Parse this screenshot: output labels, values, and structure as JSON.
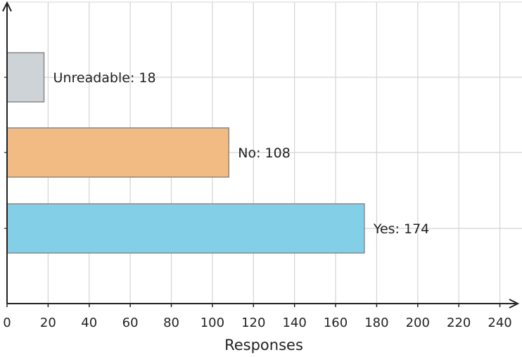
{
  "chart_data": {
    "type": "bar",
    "orientation": "horizontal",
    "categories": [
      "Unreadable",
      "No",
      "Yes"
    ],
    "values": [
      18,
      108,
      174
    ],
    "bar_labels": [
      "Unreadable: 18",
      "No: 108",
      "Yes: 174"
    ],
    "colors": [
      "#cdd3d6",
      "#f2bb83",
      "#84cfe8"
    ],
    "bar_edge_color": "#888888",
    "xlabel": "Responses",
    "ylabel": "",
    "title": "",
    "xlim": [
      0,
      250
    ],
    "xticks": [
      0,
      20,
      40,
      60,
      80,
      100,
      120,
      140,
      160,
      180,
      200,
      220,
      240
    ],
    "grid": true,
    "legend": "none"
  }
}
